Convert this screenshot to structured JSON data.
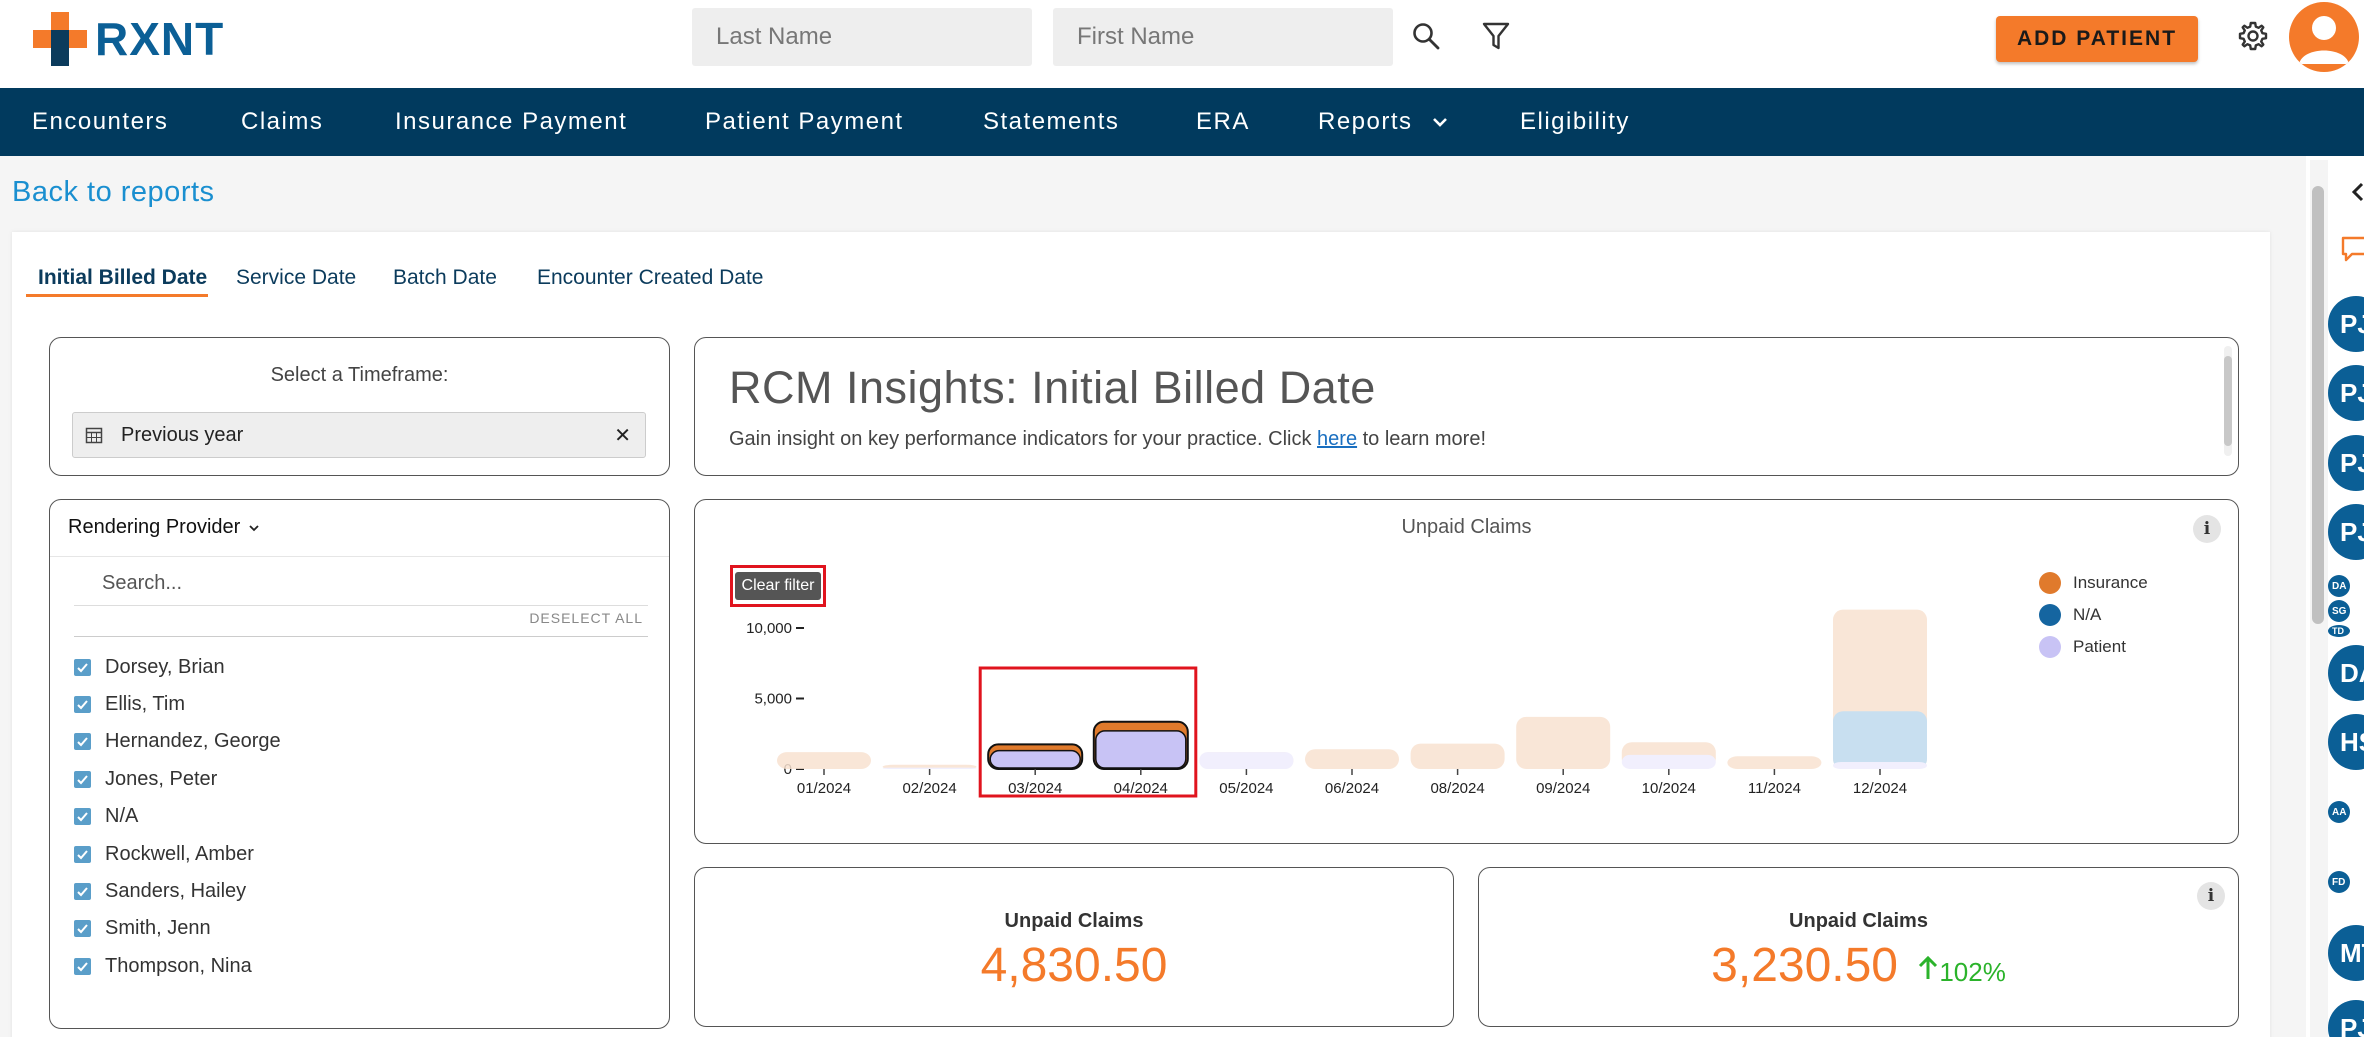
{
  "header": {
    "logo_text": "RXNT",
    "last_name_placeholder": "Last Name",
    "first_name_placeholder": "First Name",
    "add_patient_label": "ADD PATIENT"
  },
  "nav": {
    "items": [
      "Encounters",
      "Claims",
      "Insurance Payment",
      "Patient Payment",
      "Statements",
      "ERA",
      "Reports",
      "Eligibility"
    ]
  },
  "back_link": "Back to reports",
  "tabs": [
    "Initial Billed Date",
    "Service Date",
    "Batch Date",
    "Encounter Created Date"
  ],
  "timeframe": {
    "label": "Select a Timeframe:",
    "value": "Previous year"
  },
  "rendering_provider": {
    "label": "Rendering Provider",
    "search_placeholder": "Search...",
    "deselect_all": "DESELECT ALL",
    "providers": [
      "Dorsey, Brian",
      "Ellis, Tim",
      "Hernandez, George",
      "Jones, Peter",
      "N/A",
      "Rockwell, Amber",
      "Sanders, Hailey",
      "Smith, Jenn",
      "Thompson, Nina"
    ]
  },
  "insights": {
    "title": "RCM Insights: Initial Billed Date",
    "subtitle_before": "Gain insight on key performance indicators for your practice. Click ",
    "link_text": "here",
    "subtitle_after": " to learn more!"
  },
  "chart_data": {
    "type": "bar",
    "title": "Unpaid Claims",
    "clear_filter_label": "Clear filter",
    "categories": [
      "01/2024",
      "02/2024",
      "03/2024",
      "04/2024",
      "05/2024",
      "06/2024",
      "08/2024",
      "09/2024",
      "10/2024",
      "11/2024",
      "12/2024"
    ],
    "highlighted_categories": [
      "03/2024",
      "04/2024"
    ],
    "y_ticks": [
      "10,000",
      "5,000",
      "0"
    ],
    "ylim": [
      0,
      11300
    ],
    "series": [
      {
        "name": "Patient",
        "color": "#c8c3f5",
        "values": [
          0,
          100,
          1300,
          2700,
          1200,
          0,
          0,
          0,
          1000,
          0,
          500
        ]
      },
      {
        "name": "N/A",
        "color": "#1565a0",
        "values": [
          0,
          0,
          0,
          0,
          0,
          0,
          0,
          0,
          0,
          0,
          3600
        ]
      },
      {
        "name": "Insurance",
        "color": "#e07a2c",
        "values": [
          1200,
          200,
          450,
          650,
          0,
          1400,
          1800,
          3700,
          900,
          900,
          7200
        ]
      }
    ],
    "legend": [
      "Insurance",
      "N/A",
      "Patient"
    ],
    "legend_placement": "right"
  },
  "kpis": [
    {
      "label": "Unpaid Claims",
      "value": "4,830.50"
    },
    {
      "label": "Unpaid Claims",
      "value": "3,230.50",
      "change": "102%"
    }
  ],
  "side_avatars": [
    "PJ",
    "PJ",
    "PJ",
    "PJ",
    "DA",
    "SG",
    "TD",
    "DA",
    "HS",
    "AA",
    "FD",
    "MT",
    "PJ"
  ]
}
